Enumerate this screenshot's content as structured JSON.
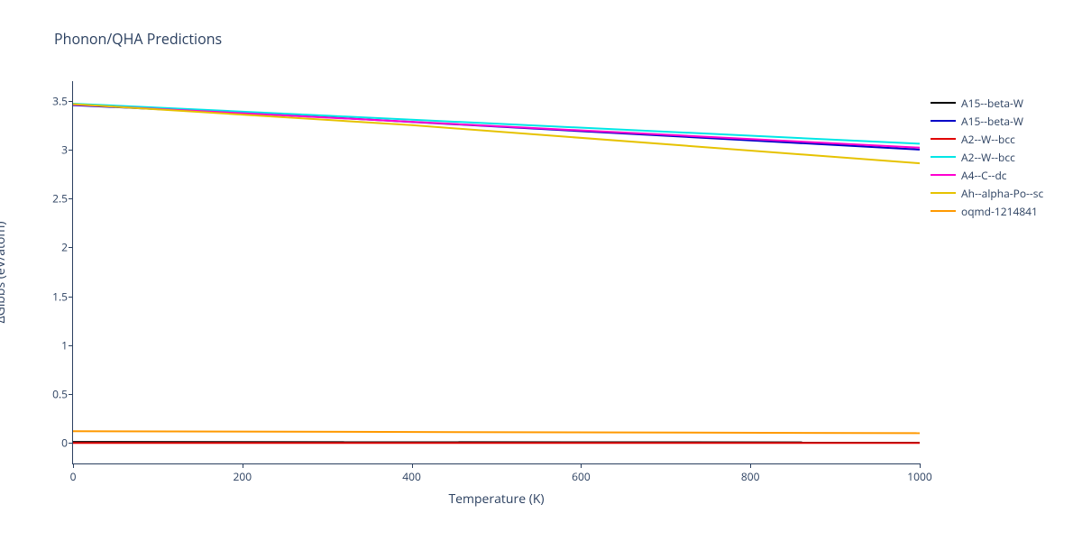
{
  "title": "Phonon/QHA Predictions",
  "xaxis": {
    "label": "Temperature (K)",
    "min": 0,
    "max": 1000,
    "ticks": [
      0,
      200,
      400,
      600,
      800,
      1000
    ]
  },
  "yaxis": {
    "label": "ΔGibbs (eV/atom)",
    "min": -0.21,
    "max": 3.7,
    "ticks": [
      0,
      0.5,
      1,
      1.5,
      2,
      2.5,
      3,
      3.5
    ]
  },
  "line_width": 2,
  "background_color": "#ffffff",
  "axis_color": "#2a3f5f",
  "title_fontsize": 16,
  "tick_fontsize": 12,
  "axis_label_fontsize": 14,
  "legend_fontsize": 12,
  "series": [
    {
      "name": "A15--beta-W",
      "color": "#000000",
      "points": [
        [
          0,
          0.01
        ],
        [
          1000,
          0.005
        ]
      ]
    },
    {
      "name": "A15--beta-W",
      "color": "#0000c8",
      "points": [
        [
          0,
          3.455
        ],
        [
          300,
          3.33
        ],
        [
          1000,
          3.0
        ]
      ]
    },
    {
      "name": "A2--W--bcc",
      "color": "#e10000",
      "points": [
        [
          0,
          0.0
        ],
        [
          1000,
          0.0
        ]
      ]
    },
    {
      "name": "A2--W--bcc",
      "color": "#00e6e6",
      "points": [
        [
          0,
          3.47
        ],
        [
          1000,
          3.06
        ]
      ]
    },
    {
      "name": "A4--C--dc",
      "color": "#ff00d0",
      "points": [
        [
          0,
          3.46
        ],
        [
          1000,
          3.02
        ]
      ]
    },
    {
      "name": "Ah--alpha-Po--sc",
      "color": "#e6c200",
      "points": [
        [
          0,
          3.465
        ],
        [
          400,
          3.25
        ],
        [
          1000,
          2.86
        ]
      ]
    },
    {
      "name": "oqmd-1214841",
      "color": "#ff9900",
      "points": [
        [
          0,
          0.12
        ],
        [
          1000,
          0.1
        ]
      ]
    }
  ]
}
